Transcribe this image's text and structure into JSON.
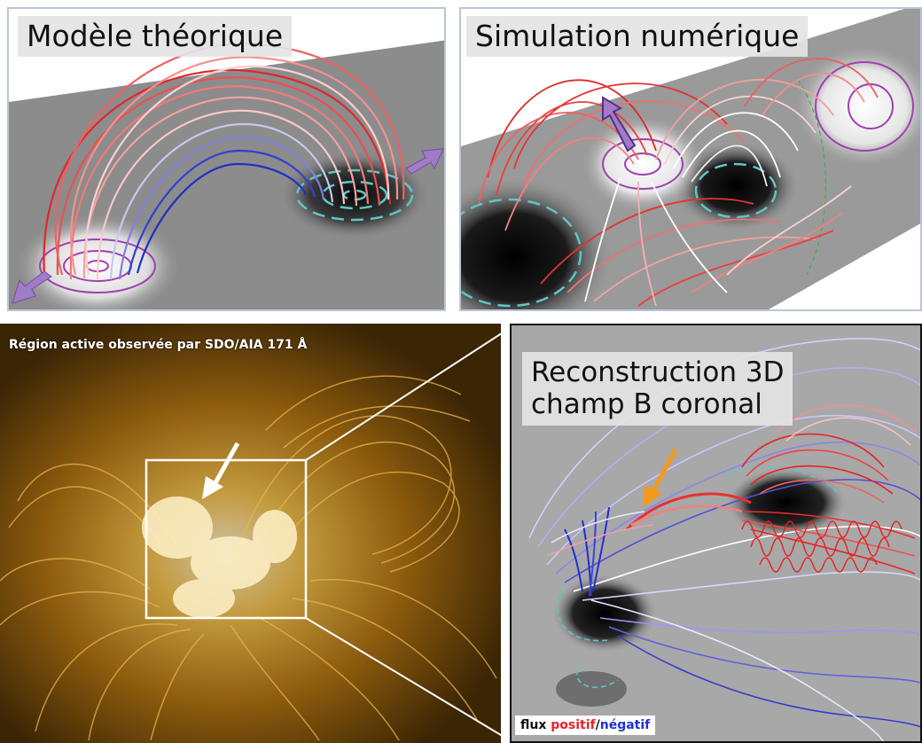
{
  "panels": {
    "theory": {
      "title": "Modèle théorique"
    },
    "simulation": {
      "title": "Simulation numérique"
    },
    "observation": {
      "title": "Région active observée par SDO/AIA 171 Å"
    },
    "reconstruction": {
      "title_line1": "Reconstruction 3D",
      "title_line2": "champ B coronal"
    }
  },
  "legend": {
    "prefix": "flux ",
    "positive": "positif",
    "separator": "/",
    "negative": "négatif"
  },
  "colors": {
    "positive": "#e8202a",
    "negative": "#2030d0",
    "sdo_gold": "#d89a1a",
    "arrow_purple": "#a07cc8",
    "arrow_orange": "#f29a1e",
    "contour_cyan": "#5fc6c6",
    "contour_purple": "#a040b0"
  },
  "icons": [
    "expand-arrow-icon",
    "pointer-arrow-icon"
  ]
}
